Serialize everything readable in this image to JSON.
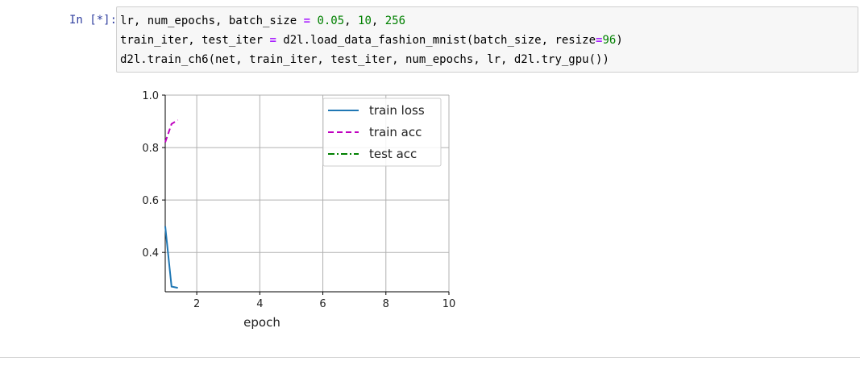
{
  "cell": {
    "prompt": "In [*]:",
    "code_lines": [
      [
        {
          "t": "lr, num_epochs, batch_size ",
          "c": ""
        },
        {
          "t": "=",
          "c": "op"
        },
        {
          "t": " ",
          "c": ""
        },
        {
          "t": "0.05",
          "c": "num"
        },
        {
          "t": ", ",
          "c": ""
        },
        {
          "t": "10",
          "c": "num"
        },
        {
          "t": ", ",
          "c": ""
        },
        {
          "t": "256",
          "c": "num"
        }
      ],
      [
        {
          "t": "train_iter, test_iter ",
          "c": ""
        },
        {
          "t": "=",
          "c": "op"
        },
        {
          "t": " d2l.load_data_fashion_mnist(batch_size, resize",
          "c": ""
        },
        {
          "t": "=",
          "c": "op"
        },
        {
          "t": "96",
          "c": "num"
        },
        {
          "t": ")",
          "c": ""
        }
      ],
      [
        {
          "t": "d2l.train_ch6(net, train_iter, test_iter, num_epochs, lr, d2l.try_gpu())",
          "c": ""
        }
      ]
    ]
  },
  "chart_data": {
    "type": "line",
    "xlabel": "epoch",
    "ylabel": "",
    "xlim": [
      1,
      10
    ],
    "ylim": [
      0.25,
      1.0
    ],
    "xticks": [
      2,
      4,
      6,
      8,
      10
    ],
    "yticks": [
      0.4,
      0.6,
      0.8,
      1.0
    ],
    "xtick_labels": [
      "2",
      "4",
      "6",
      "8",
      "10"
    ],
    "ytick_labels": [
      "0.4",
      "0.6",
      "0.8",
      "1.0"
    ],
    "grid": true,
    "legend_position": "top-right",
    "series": [
      {
        "name": "train loss",
        "color": "#1f77b4",
        "style": "solid",
        "x": [
          1.0,
          1.2,
          1.4
        ],
        "y": [
          0.5,
          0.27,
          0.265
        ]
      },
      {
        "name": "train acc",
        "color": "#bf00bf",
        "style": "dashed",
        "x": [
          1.0,
          1.2,
          1.4
        ],
        "y": [
          0.82,
          0.89,
          0.905
        ]
      },
      {
        "name": "test acc",
        "color": "#008000",
        "style": "dashdot",
        "x": [],
        "y": []
      }
    ]
  }
}
